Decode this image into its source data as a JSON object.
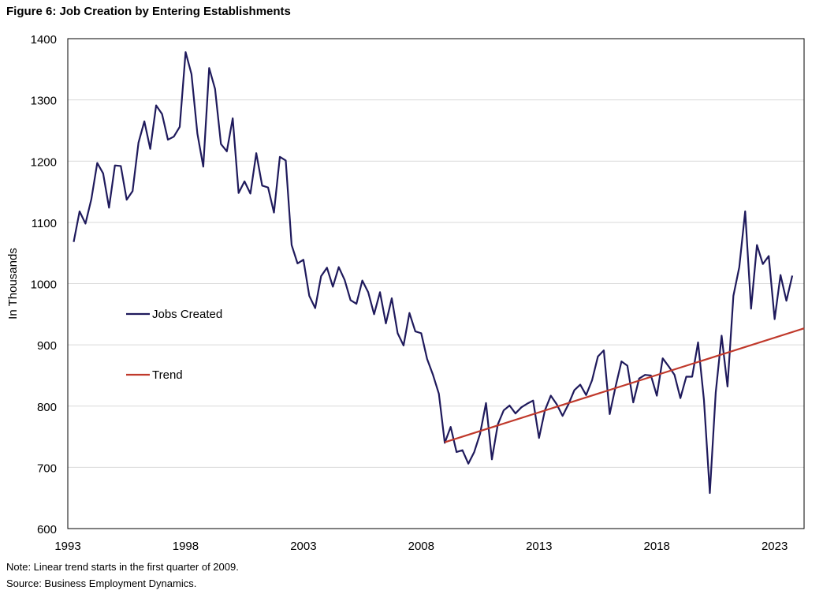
{
  "figure": {
    "title": "Figure 6: Job Creation by Entering Establishments",
    "note": "Note: Linear trend starts in the first quarter of 2009.",
    "source": "Source: Business Employment Dynamics."
  },
  "colors": {
    "jobs": "#1f1a5c",
    "trend": "#c0392b",
    "grid": "#d9d9d9",
    "axis": "#000000"
  },
  "chart_data": {
    "type": "line",
    "title": "Figure 6: Job Creation by Entering Establishments",
    "xlabel": "",
    "ylabel": "In Thousands",
    "xlim": [
      1993,
      2024.25
    ],
    "ylim": [
      600,
      1400
    ],
    "yticks": [
      600,
      700,
      800,
      900,
      1000,
      1100,
      1200,
      1300,
      1400
    ],
    "xticks": [
      1993,
      1998,
      2003,
      2008,
      2013,
      2018,
      2023
    ],
    "grid": "horizontal",
    "legend_position": "left-middle",
    "series": [
      {
        "name": "Jobs Created",
        "start": 1993.25,
        "step": 0.25,
        "values": [
          1068,
          1118,
          1098,
          1138,
          1197,
          1180,
          1124,
          1193,
          1192,
          1137,
          1151,
          1230,
          1265,
          1220,
          1291,
          1277,
          1235,
          1240,
          1256,
          1378,
          1342,
          1245,
          1191,
          1352,
          1318,
          1228,
          1216,
          1270,
          1148,
          1167,
          1147,
          1213,
          1160,
          1157,
          1116,
          1207,
          1201,
          1063,
          1033,
          1039,
          980,
          960,
          1012,
          1026,
          995,
          1027,
          1006,
          973,
          967,
          1005,
          986,
          950,
          986,
          935,
          976,
          919,
          899,
          952,
          922,
          919,
          877,
          851,
          820,
          740,
          766,
          725,
          728,
          706,
          725,
          755,
          805,
          713,
          770,
          793,
          801,
          788,
          798,
          804,
          809,
          748,
          793,
          817,
          803,
          784,
          803,
          826,
          835,
          818,
          842,
          881,
          891,
          787,
          832,
          873,
          866,
          806,
          845,
          851,
          850,
          817,
          878,
          865,
          851,
          813,
          848,
          848,
          904,
          810,
          658,
          822,
          915,
          832,
          980,
          1027,
          1118,
          959,
          1063,
          1032,
          1045,
          942,
          1014,
          972,
          1013
        ]
      },
      {
        "name": "Trend",
        "start": 2009.0,
        "end": 2024.25,
        "start_value": 741,
        "end_value": 927
      }
    ]
  }
}
